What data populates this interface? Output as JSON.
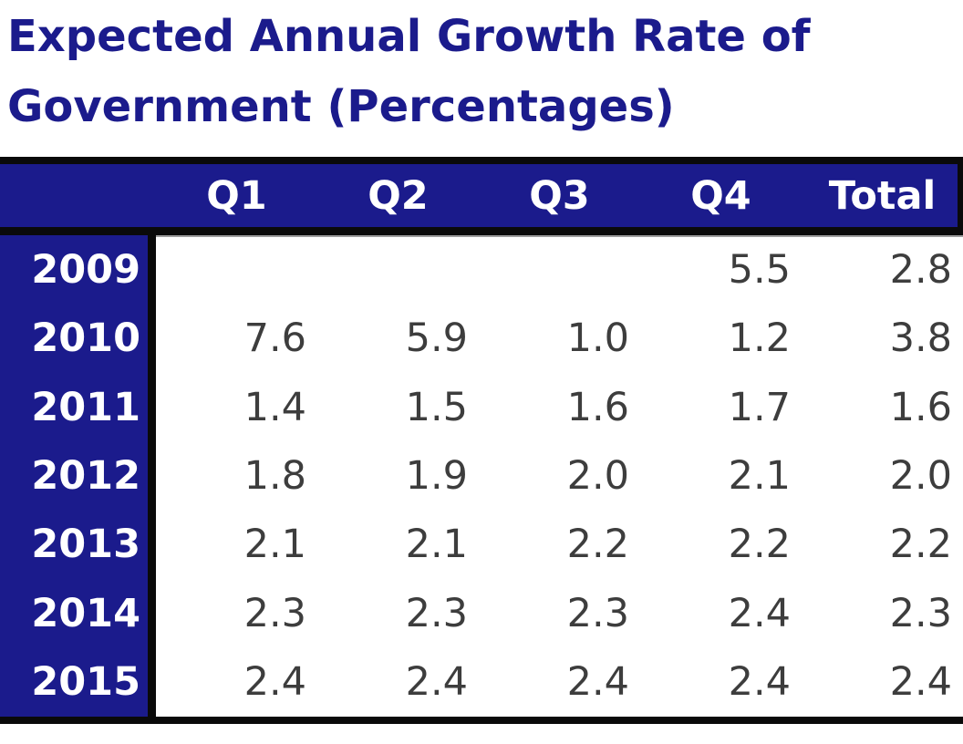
{
  "title": {
    "line1": "Expected Annual Growth Rate of",
    "line2": "Government (Percentages)"
  },
  "table": {
    "columns": [
      "Q1",
      "Q2",
      "Q3",
      "Q4",
      "Total"
    ],
    "rows": [
      {
        "year": "2009",
        "values": [
          "",
          "",
          "",
          "5.5",
          "2.8"
        ]
      },
      {
        "year": "2010",
        "values": [
          "7.6",
          "5.9",
          "1.0",
          "1.2",
          "3.8"
        ]
      },
      {
        "year": "2011",
        "values": [
          "1.4",
          "1.5",
          "1.6",
          "1.7",
          "1.6"
        ]
      },
      {
        "year": "2012",
        "values": [
          "1.8",
          "1.9",
          "2.0",
          "2.1",
          "2.0"
        ]
      },
      {
        "year": "2013",
        "values": [
          "2.1",
          "2.1",
          "2.2",
          "2.2",
          "2.2"
        ]
      },
      {
        "year": "2014",
        "values": [
          "2.3",
          "2.3",
          "2.3",
          "2.4",
          "2.3"
        ]
      },
      {
        "year": "2015",
        "values": [
          "2.4",
          "2.4",
          "2.4",
          "2.4",
          "2.4"
        ]
      }
    ]
  },
  "colors": {
    "navy": "#1b1b8c",
    "border_black": "#0a0a0a",
    "value_text": "#3d3d3d",
    "header_text": "#ffffff",
    "background": "#ffffff"
  },
  "chart_data": {
    "type": "table",
    "title": "Expected Annual Growth Rate of Government (Percentages)",
    "columns": [
      "Q1",
      "Q2",
      "Q3",
      "Q4",
      "Total"
    ],
    "row_labels": [
      "2009",
      "2010",
      "2011",
      "2012",
      "2013",
      "2014",
      "2015"
    ],
    "series": [
      {
        "name": "2009",
        "values": [
          null,
          null,
          null,
          5.5,
          2.8
        ]
      },
      {
        "name": "2010",
        "values": [
          7.6,
          5.9,
          1.0,
          1.2,
          3.8
        ]
      },
      {
        "name": "2011",
        "values": [
          1.4,
          1.5,
          1.6,
          1.7,
          1.6
        ]
      },
      {
        "name": "2012",
        "values": [
          1.8,
          1.9,
          2.0,
          2.1,
          2.0
        ]
      },
      {
        "name": "2013",
        "values": [
          2.1,
          2.1,
          2.2,
          2.2,
          2.2
        ]
      },
      {
        "name": "2014",
        "values": [
          2.3,
          2.3,
          2.3,
          2.4,
          2.3
        ]
      },
      {
        "name": "2015",
        "values": [
          2.4,
          2.4,
          2.4,
          2.4,
          2.4
        ]
      }
    ],
    "units": "percent",
    "notes": "Quarterly and total expected annual growth rate values; 2009 Q1-Q3 blank"
  }
}
